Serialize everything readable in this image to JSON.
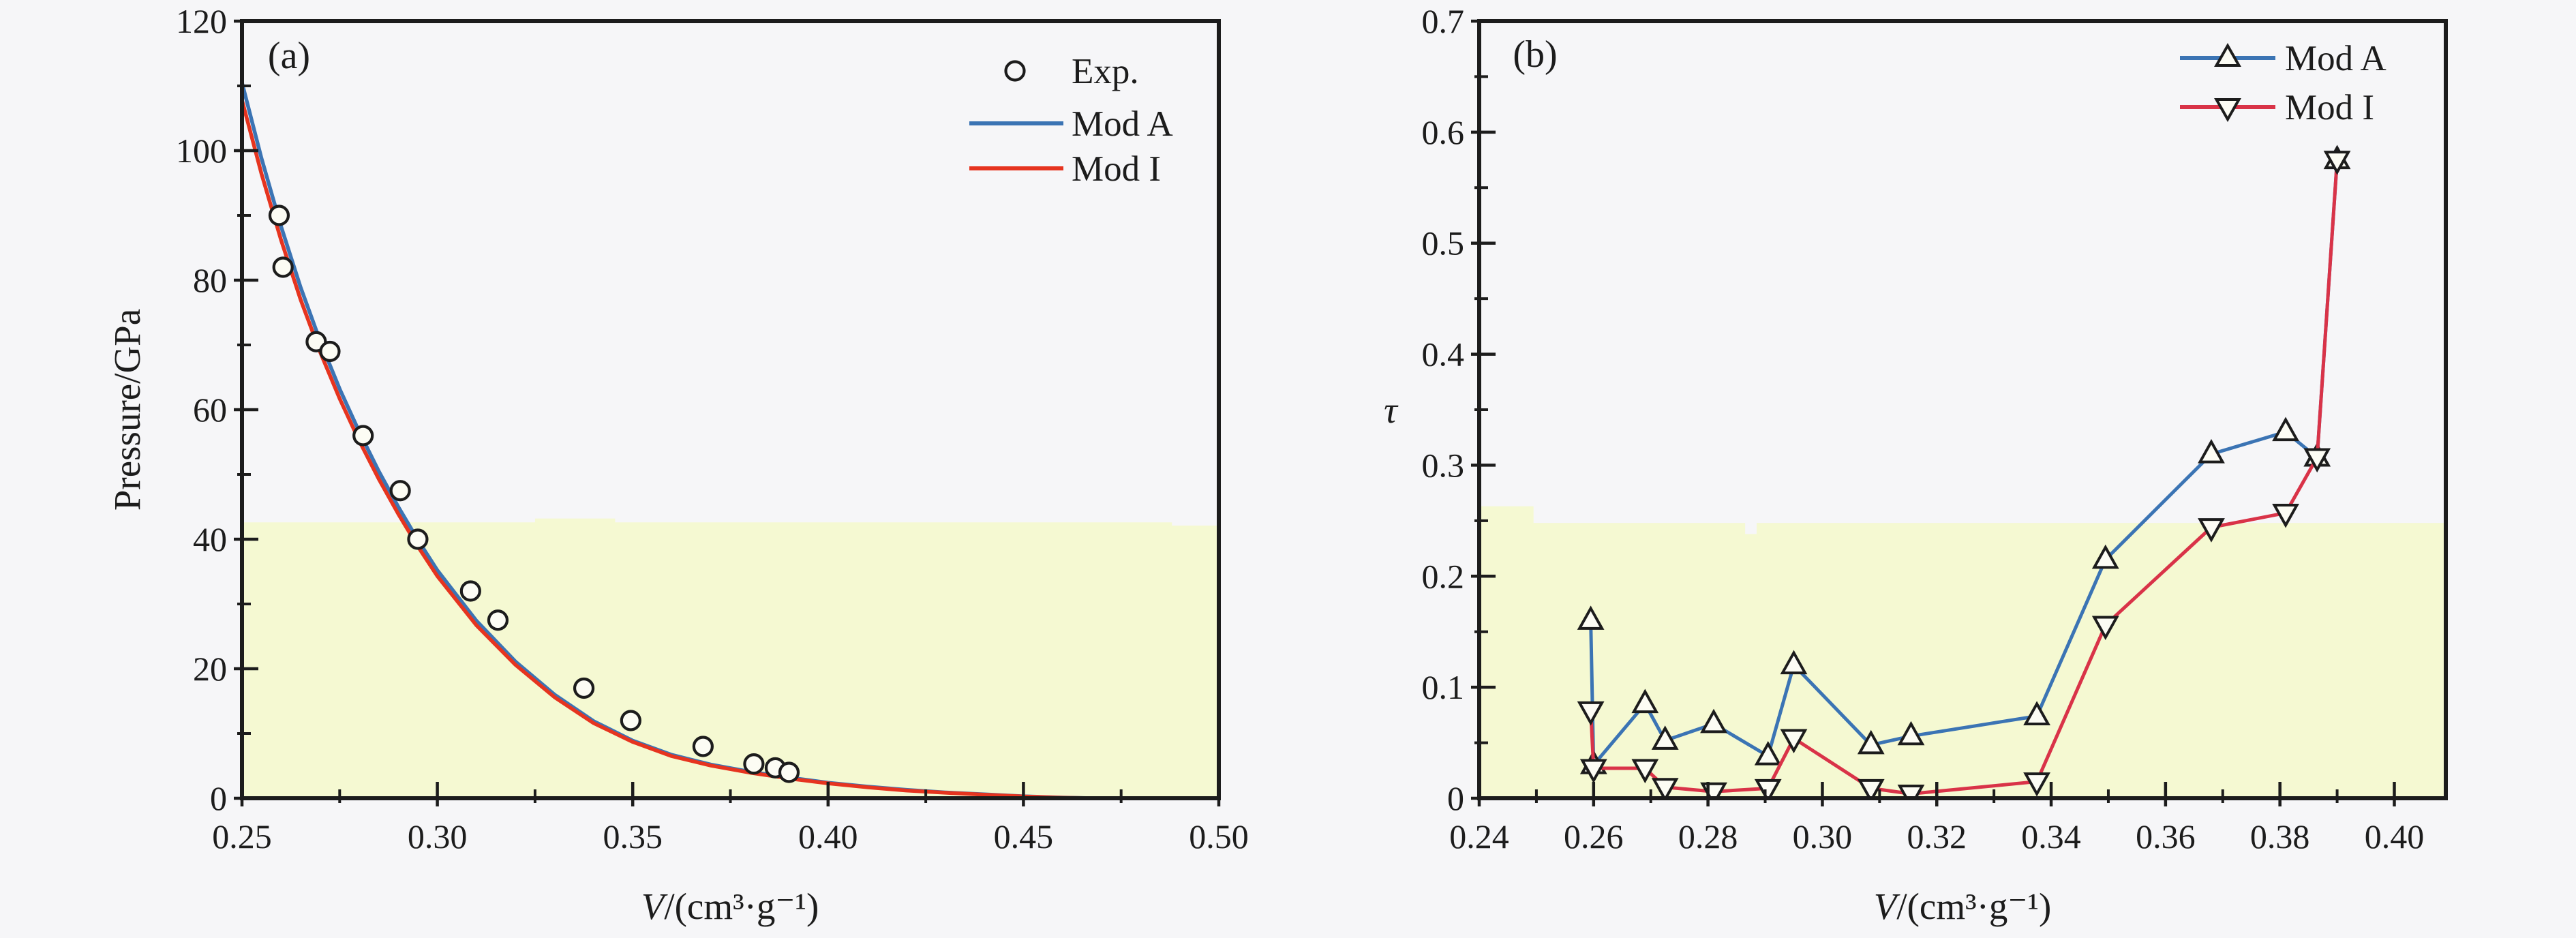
{
  "figure": {
    "background": "#f6f6f8",
    "band_color": "#f5f9d2",
    "axis_color": "#1c1c1c",
    "marker_fill": "#fcfcf4"
  },
  "chart_data": [
    {
      "id": "a",
      "type": "line",
      "panel_label": "(a)",
      "xlabel_v": "V",
      "xlabel_rest": "/(cm³·g⁻¹)",
      "ylabel": "Pressure/GPa",
      "xlim": [
        0.25,
        0.5
      ],
      "ylim": [
        0,
        120
      ],
      "grid": false,
      "legend_position": "top-right-inside",
      "x_major": [
        0.25,
        0.3,
        0.35,
        0.4,
        0.45,
        0.5
      ],
      "x_labels": [
        "0.25",
        "0.30",
        "0.35",
        "0.40",
        "0.45",
        "0.50"
      ],
      "x_minor": [
        0.275,
        0.325,
        0.375,
        0.425,
        0.475
      ],
      "y_major": [
        0,
        20,
        40,
        60,
        80,
        100,
        120
      ],
      "y_labels": [
        "0",
        "20",
        "40",
        "60",
        "80",
        "100",
        "120"
      ],
      "y_minor": [
        10,
        30,
        50,
        70,
        90,
        110
      ],
      "highlight_band": [
        [
          0.25,
          42.6
        ],
        [
          0.325,
          42.6
        ],
        [
          0.325,
          43.2
        ],
        [
          0.3455,
          43.2
        ],
        [
          0.3455,
          42.6
        ],
        [
          0.488,
          42.6
        ],
        [
          0.488,
          42.1
        ],
        [
          0.5,
          42.1
        ]
      ],
      "legend": [
        {
          "marker": "circle",
          "label": "Exp."
        },
        {
          "marker": "line",
          "color": "#3b74b4",
          "label": "Mod A"
        },
        {
          "marker": "line",
          "color": "#e6341f",
          "label": "Mod I"
        }
      ],
      "exp_points": {
        "name": "Exp.",
        "V": [
          0.2595,
          0.2605,
          0.269,
          0.2725,
          0.281,
          0.2905,
          0.295,
          0.3085,
          0.3155,
          0.3375,
          0.3495,
          0.368,
          0.381,
          0.3865,
          0.39
        ],
        "P": [
          90,
          82,
          70.5,
          69,
          56,
          47.5,
          40,
          32,
          27.5,
          17,
          12,
          8,
          5.3,
          4.7,
          4.0
        ]
      },
      "curves": [
        {
          "name": "Mod A",
          "color": "#3b74b4",
          "V": [
            0.25,
            0.255,
            0.26,
            0.265,
            0.27,
            0.275,
            0.28,
            0.285,
            0.29,
            0.295,
            0.3,
            0.31,
            0.32,
            0.33,
            0.34,
            0.35,
            0.36,
            0.37,
            0.38,
            0.39,
            0.4,
            0.41,
            0.42,
            0.43,
            0.44,
            0.45,
            0.46,
            0.468
          ],
          "P": [
            110.5,
            98.8,
            88.3,
            78.9,
            70.6,
            63.2,
            56.6,
            50.5,
            45.0,
            39.9,
            35.2,
            27.4,
            21.1,
            16.0,
            11.9,
            8.9,
            6.7,
            5.2,
            4.1,
            3.2,
            2.4,
            1.8,
            1.3,
            0.9,
            0.6,
            0.3,
            0.1,
            0
          ]
        },
        {
          "name": "Mod I",
          "color": "#e6341f",
          "V": [
            0.25,
            0.255,
            0.26,
            0.265,
            0.27,
            0.275,
            0.28,
            0.285,
            0.29,
            0.295,
            0.3,
            0.31,
            0.32,
            0.33,
            0.34,
            0.35,
            0.36,
            0.37,
            0.38,
            0.39,
            0.4,
            0.41,
            0.42,
            0.43,
            0.44,
            0.45,
            0.46,
            0.468
          ],
          "P": [
            107.8,
            96.4,
            86.2,
            77.0,
            68.9,
            61.7,
            55.2,
            49.3,
            43.9,
            38.9,
            34.3,
            26.7,
            20.6,
            15.6,
            11.6,
            8.7,
            6.5,
            5.05,
            3.95,
            3.05,
            2.3,
            1.7,
            1.2,
            0.85,
            0.55,
            0.28,
            0.08,
            0
          ]
        }
      ]
    },
    {
      "id": "b",
      "type": "line",
      "panel_label": "(b)",
      "xlabel_v": "V",
      "xlabel_rest": "/(cm³·g⁻¹)",
      "ylabel": "τ",
      "xlim": [
        0.24,
        0.409
      ],
      "ylim": [
        0,
        0.7
      ],
      "grid": false,
      "legend_position": "top-right-inside",
      "x_major": [
        0.24,
        0.26,
        0.28,
        0.3,
        0.32,
        0.34,
        0.36,
        0.38,
        0.4
      ],
      "x_labels": [
        "0.24",
        "0.26",
        "0.28",
        "0.30",
        "0.32",
        "0.34",
        "0.36",
        "0.38",
        "0.40"
      ],
      "x_minor": [
        0.25,
        0.27,
        0.29,
        0.31,
        0.33,
        0.35,
        0.37,
        0.39
      ],
      "y_major": [
        0,
        0.1,
        0.2,
        0.3,
        0.4,
        0.5,
        0.6,
        0.7
      ],
      "y_labels": [
        "0",
        "0.1",
        "0.2",
        "0.3",
        "0.4",
        "0.5",
        "0.6",
        "0.7"
      ],
      "y_minor": [
        0.05,
        0.15,
        0.25,
        0.35,
        0.45,
        0.55,
        0.65
      ],
      "highlight_band": [
        [
          0.24,
          0.263
        ],
        [
          0.2495,
          0.263
        ],
        [
          0.2495,
          0.248
        ],
        [
          0.2865,
          0.248
        ],
        [
          0.2865,
          0.238
        ],
        [
          0.2885,
          0.238
        ],
        [
          0.2885,
          0.248
        ],
        [
          0.409,
          0.248
        ]
      ],
      "legend": [
        {
          "marker": "line-triangle-up",
          "color": "#3b74b4",
          "label": "Mod A"
        },
        {
          "marker": "line-triangle-down",
          "color": "#d93348",
          "label": "Mod I"
        }
      ],
      "series": [
        {
          "name": "Mod A",
          "color": "#3b74b4",
          "marker": "triangle-up",
          "V": [
            0.2595,
            0.26,
            0.269,
            0.2725,
            0.281,
            0.2905,
            0.295,
            0.3085,
            0.3155,
            0.3375,
            0.3495,
            0.368,
            0.381,
            0.3865,
            0.39
          ],
          "tau": [
            0.16,
            0.03,
            0.085,
            0.052,
            0.067,
            0.038,
            0.12,
            0.048,
            0.056,
            0.074,
            0.215,
            0.31,
            0.33,
            0.307,
            0.575
          ]
        },
        {
          "name": "Mod I",
          "color": "#d93348",
          "marker": "triangle-down",
          "V": [
            0.2595,
            0.26,
            0.269,
            0.2725,
            0.281,
            0.2905,
            0.295,
            0.3085,
            0.3155,
            0.3375,
            0.3495,
            0.368,
            0.381,
            0.3865,
            0.39
          ],
          "tau": [
            0.079,
            0.027,
            0.027,
            0.01,
            0.006,
            0.009,
            0.054,
            0.009,
            0.004,
            0.015,
            0.156,
            0.244,
            0.257,
            0.307,
            0.575
          ]
        }
      ]
    }
  ]
}
